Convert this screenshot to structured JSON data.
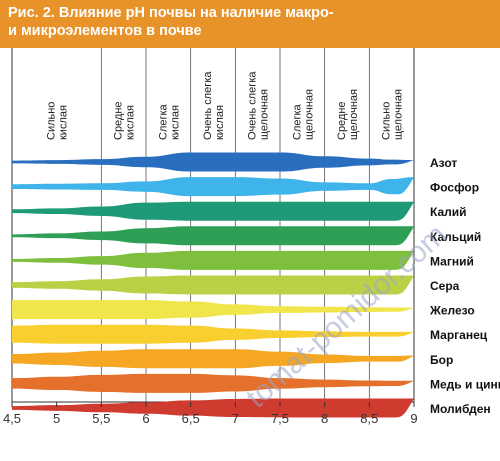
{
  "header": {
    "title_line1": "Рис. 2. Влияние pH почвы на наличие макро-",
    "title_line2": "и  микроэлементов в почве"
  },
  "watermark": "tomat-pomidor.com",
  "chart_data": {
    "type": "area",
    "x_ticks": [
      4.5,
      5,
      5.5,
      6,
      6.5,
      7,
      7.5,
      8,
      8.5,
      9
    ],
    "xlim": [
      4.5,
      9
    ],
    "zones": [
      {
        "label": "Сильно кислая",
        "from": 4.5,
        "to": 5.5
      },
      {
        "label": "Средне кислая",
        "from": 5.5,
        "to": 6.0
      },
      {
        "label": "Слегка кислая",
        "from": 6.0,
        "to": 6.5
      },
      {
        "label": "Очень слегка кислая",
        "from": 6.5,
        "to": 7.0
      },
      {
        "label": "Очень слегка щелочная",
        "from": 7.0,
        "to": 7.5
      },
      {
        "label": "Слегка щелочная",
        "from": 7.5,
        "to": 8.0
      },
      {
        "label": "Средне щелочная",
        "from": 8.0,
        "to": 8.5
      },
      {
        "label": "Сильно щелочная",
        "from": 8.5,
        "to": 9.0
      }
    ],
    "sample_x": [
      4.5,
      5.0,
      5.5,
      6.0,
      6.5,
      7.0,
      7.5,
      8.0,
      8.5,
      8.75,
      9.0
    ],
    "nutrients": [
      {
        "name": "Азот",
        "color": "#2a6fbf",
        "widths": [
          0.15,
          0.2,
          0.3,
          0.55,
          1.0,
          1.0,
          1.0,
          0.6,
          0.35,
          0.25,
          0.2
        ]
      },
      {
        "name": "Фосфор",
        "color": "#3fb4ea",
        "widths": [
          0.25,
          0.3,
          0.35,
          0.55,
          1.0,
          1.0,
          0.85,
          0.45,
          0.35,
          0.8,
          1.0
        ]
      },
      {
        "name": "Калий",
        "color": "#1e9a78",
        "widths": [
          0.2,
          0.3,
          0.5,
          0.9,
          1.0,
          1.0,
          1.0,
          1.0,
          1.0,
          1.0,
          1.0
        ]
      },
      {
        "name": "Кальций",
        "color": "#2f9f55",
        "widths": [
          0.15,
          0.25,
          0.45,
          0.8,
          1.0,
          1.0,
          1.0,
          1.0,
          1.0,
          1.0,
          1.0
        ]
      },
      {
        "name": "Магний",
        "color": "#7ebf3e",
        "widths": [
          0.15,
          0.25,
          0.45,
          0.8,
          1.0,
          1.0,
          1.0,
          1.0,
          1.0,
          1.0,
          1.0
        ]
      },
      {
        "name": "Сера",
        "color": "#bad147",
        "widths": [
          0.3,
          0.4,
          0.6,
          0.9,
          1.0,
          1.0,
          1.0,
          1.0,
          1.0,
          1.0,
          1.0
        ]
      },
      {
        "name": "Железо",
        "color": "#f0e54a",
        "widths": [
          1.0,
          1.0,
          1.0,
          1.0,
          0.85,
          0.55,
          0.35,
          0.3,
          0.25,
          0.22,
          0.2
        ]
      },
      {
        "name": "Марганец",
        "color": "#f9cf30",
        "widths": [
          0.9,
          1.0,
          1.0,
          1.0,
          0.9,
          0.6,
          0.4,
          0.3,
          0.25,
          0.25,
          0.25
        ]
      },
      {
        "name": "Бор",
        "color": "#f5a623",
        "widths": [
          0.5,
          0.65,
          0.85,
          1.0,
          1.0,
          1.0,
          0.75,
          0.45,
          0.3,
          0.3,
          0.35
        ]
      },
      {
        "name": "Медь и цинк",
        "color": "#e4702b",
        "widths": [
          0.55,
          0.7,
          0.9,
          1.0,
          1.0,
          0.85,
          0.55,
          0.4,
          0.3,
          0.28,
          0.28
        ]
      },
      {
        "name": "Молибден",
        "color": "#cf3b2f",
        "widths": [
          0.2,
          0.3,
          0.45,
          0.6,
          0.8,
          0.95,
          1.0,
          1.0,
          1.0,
          1.0,
          1.0
        ]
      }
    ]
  }
}
